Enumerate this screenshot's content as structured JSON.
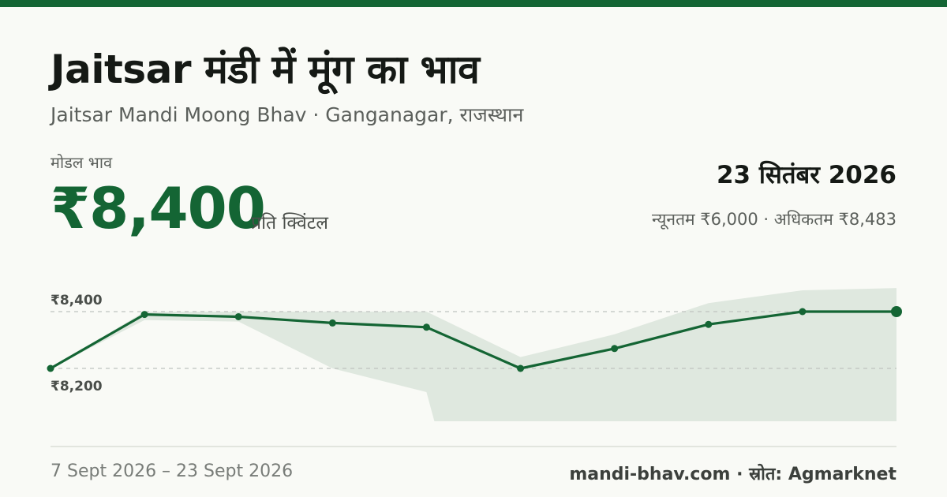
{
  "header": {
    "title": "Jaitsar मंडी में मूंग का भाव",
    "subtitle": "Jaitsar Mandi Moong Bhav · Ganganagar, राजस्थान"
  },
  "price_block": {
    "label": "मोडल भाव",
    "value": "₹8,400",
    "unit": "प्रति क्विंटल"
  },
  "summary": {
    "date": "23 सितंबर 2026",
    "range": "न्यूनतम ₹6,000 · अधिकतम ₹8,483"
  },
  "footer": {
    "period": "7 Sept 2026 – 23 Sept 2026",
    "source": "mandi-bhav.com · स्रोत: Agmarknet"
  },
  "colors": {
    "accent": "#146534",
    "band": "#dfe8df",
    "grid": "#bfc3bf",
    "background": "#f9faf6"
  },
  "chart_data": {
    "type": "line",
    "title": "",
    "xlabel": "",
    "ylabel": "",
    "x_range": [
      "7 Sept 2026",
      "23 Sept 2026"
    ],
    "y_ticks": [
      {
        "value": 8200,
        "label": "₹8,200"
      },
      {
        "value": 8400,
        "label": "₹8,400"
      }
    ],
    "grid": "dashed horizontal at tick values",
    "series": [
      {
        "role": "modal",
        "values": [
          8200,
          8390,
          8382,
          8360,
          8345,
          8200,
          8270,
          8355,
          8400,
          8400
        ]
      },
      {
        "role": "max",
        "values": [
          8200,
          8400,
          8400,
          8400,
          8400,
          8240,
          8320,
          8430,
          8475,
          8483
        ]
      },
      {
        "role": "min",
        "values": [
          8200,
          8370,
          8365,
          8200,
          8100,
          6000,
          6000,
          6000,
          6000,
          6000
        ]
      }
    ],
    "last_point_highlighted": true
  }
}
